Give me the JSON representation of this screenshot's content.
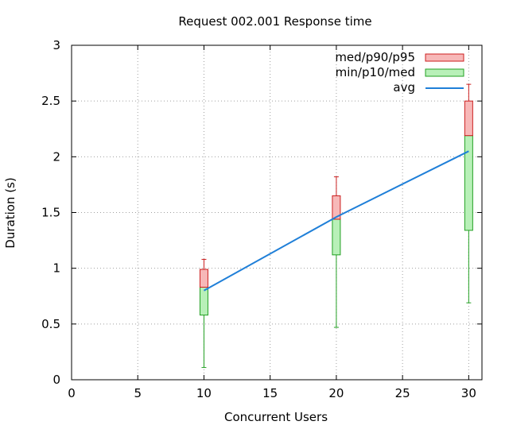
{
  "chart_data": {
    "type": "box",
    "title": "Request 002.001 Response time",
    "xlabel": "Concurrent Users",
    "ylabel": "Duration (s)",
    "xlim": [
      0,
      31
    ],
    "ylim": [
      0,
      3
    ],
    "xticks": [
      0,
      5,
      10,
      15,
      20,
      25,
      30
    ],
    "yticks": [
      0,
      0.5,
      1,
      1.5,
      2,
      2.5,
      3
    ],
    "grid": true,
    "legend_position": "top-right",
    "legend": [
      {
        "label": "med/p90/p95",
        "color": "#f7b8b8",
        "stroke": "#cc1f1f"
      },
      {
        "label": "min/p10/med",
        "color": "#b8f0b8",
        "stroke": "#22a022"
      },
      {
        "label": "avg",
        "color": "#1f7fd8"
      }
    ],
    "boxes": [
      {
        "x": 10,
        "min": 0.11,
        "p10": 0.58,
        "med": 0.83,
        "p90": 0.99,
        "p95": 1.08,
        "avg": 0.8
      },
      {
        "x": 20,
        "min": 0.47,
        "p10": 1.12,
        "med": 1.44,
        "p90": 1.65,
        "p95": 1.82,
        "avg": 1.46
      },
      {
        "x": 30,
        "min": 0.69,
        "p10": 1.34,
        "med": 2.19,
        "p90": 2.5,
        "p95": 2.65,
        "avg": 2.05
      }
    ]
  }
}
